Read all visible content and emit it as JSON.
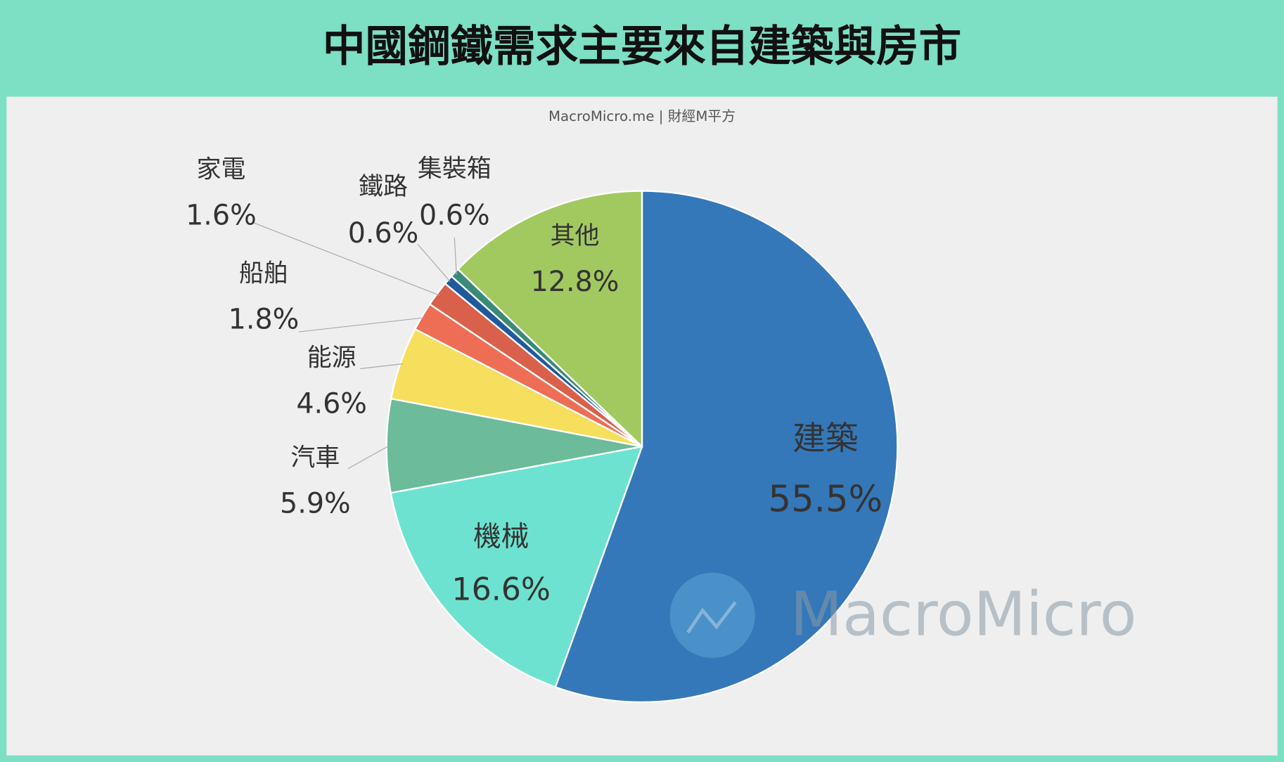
{
  "chart_data": {
    "type": "pie",
    "title": "中國鋼鐵需求主要來自建築與房市",
    "subtitle": "MacroMicro.me | 財經M平方",
    "watermark": "MacroMicro",
    "categories": [
      "建築",
      "機械",
      "汽車",
      "能源",
      "船舶",
      "家電",
      "鐵路",
      "集裝箱",
      "其他"
    ],
    "values": [
      55.5,
      16.6,
      5.9,
      4.6,
      1.8,
      1.6,
      0.6,
      0.6,
      12.8
    ],
    "value_labels": [
      "55.5%",
      "16.6%",
      "5.9%",
      "4.6%",
      "1.8%",
      "1.6%",
      "0.6%",
      "0.6%",
      "12.8%"
    ],
    "colors": [
      "#3578b9",
      "#6ee2d0",
      "#6cbb9b",
      "#f5df5c",
      "#ee6e55",
      "#d9604a",
      "#1f5a9c",
      "#3a8a78",
      "#a2c960"
    ]
  }
}
